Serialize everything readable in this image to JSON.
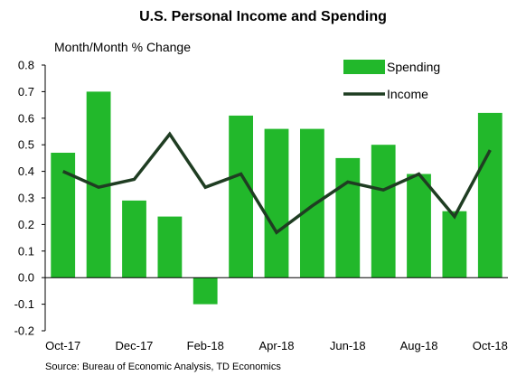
{
  "chart_data": {
    "type": "bar",
    "title": "U.S. Personal Income and Spending",
    "ylabel": "Month/Month % Change",
    "source": "Source:  Bureau of Economic Analysis, TD Economics",
    "ylim": [
      -0.2,
      0.8
    ],
    "yticks": [
      "0.8",
      "0.7",
      "0.6",
      "0.5",
      "0.4",
      "0.3",
      "0.2",
      "0.1",
      "0.0",
      "-0.1",
      "-0.2"
    ],
    "ytick_values": [
      0.8,
      0.7,
      0.6,
      0.5,
      0.4,
      0.3,
      0.2,
      0.1,
      0.0,
      -0.1,
      -0.2
    ],
    "categories": [
      "Oct-17",
      "Nov-17",
      "Dec-17",
      "Jan-18",
      "Feb-18",
      "Mar-18",
      "Apr-18",
      "May-18",
      "Jun-18",
      "Jul-18",
      "Aug-18",
      "Sep-18",
      "Oct-18"
    ],
    "xtick_labels": [
      "Oct-17",
      "",
      "Dec-17",
      "",
      "Feb-18",
      "",
      "Apr-18",
      "",
      "Jun-18",
      "",
      "Aug-18",
      "",
      "Oct-18"
    ],
    "series": [
      {
        "name": "Spending",
        "type": "bar",
        "color": "#22b82b",
        "values": [
          0.47,
          0.7,
          0.29,
          0.23,
          -0.1,
          0.61,
          0.56,
          0.56,
          0.45,
          0.5,
          0.39,
          0.25,
          0.62
        ]
      },
      {
        "name": "Income",
        "type": "line",
        "color": "#1f3d22",
        "values": [
          0.4,
          0.34,
          0.37,
          0.54,
          0.34,
          0.39,
          0.17,
          0.27,
          0.36,
          0.33,
          0.39,
          0.23,
          0.48
        ]
      }
    ],
    "legend_position": "top-right",
    "grid": false
  }
}
